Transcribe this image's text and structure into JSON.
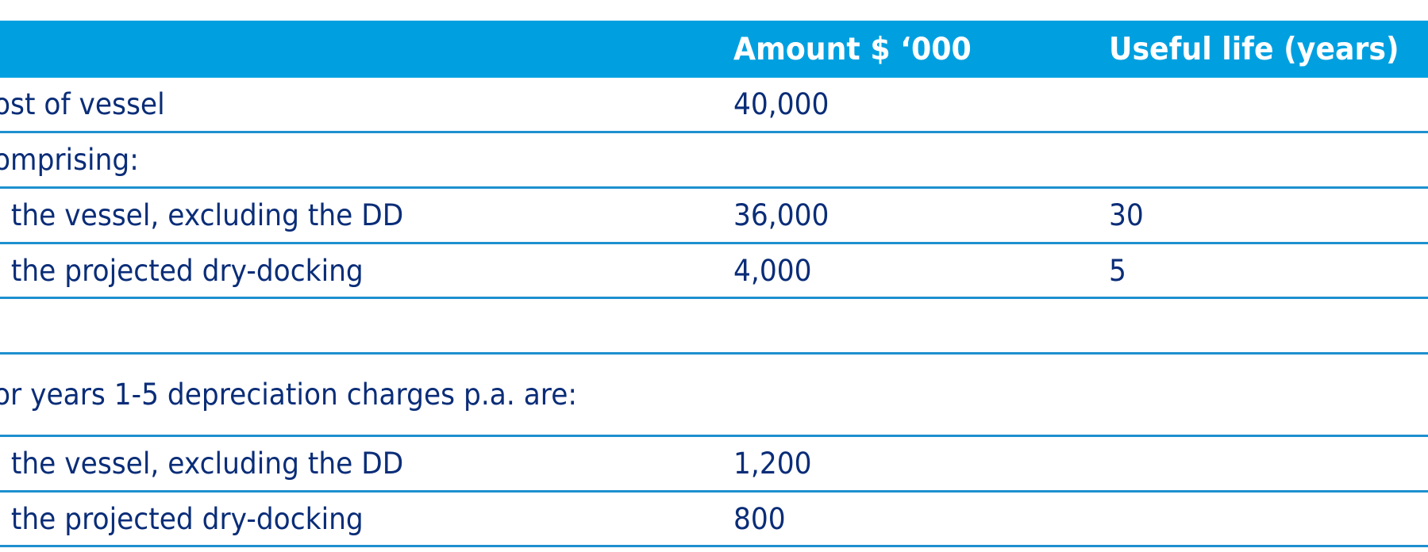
{
  "table": {
    "header": {
      "description": "",
      "amount": "Amount $ ‘000",
      "useful_life": "Useful life (years)"
    },
    "rows": [
      {
        "description": "ost of vessel",
        "amount": "40,000",
        "useful_life": ""
      },
      {
        "description": "omprising:",
        "amount": "",
        "useful_life": ""
      },
      {
        "description": "  the vessel, excluding the DD",
        "amount": "36,000",
        "useful_life": "30"
      },
      {
        "description": "  the projected dry-docking",
        "amount": "4,000",
        "useful_life": "5"
      },
      {
        "description": "",
        "amount": "",
        "useful_life": ""
      },
      {
        "description": "or years 1-5 depreciation charges p.a. are:",
        "amount": "",
        "useful_life": ""
      },
      {
        "description": "  the vessel, excluding the DD",
        "amount": "1,200",
        "useful_life": ""
      },
      {
        "description": "  the projected dry-docking",
        "amount": "800",
        "useful_life": ""
      }
    ]
  }
}
